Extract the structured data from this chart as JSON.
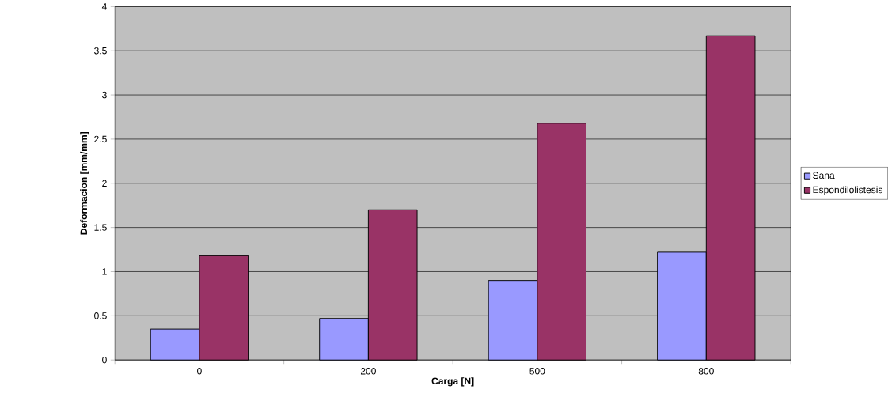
{
  "chart_data": {
    "type": "bar",
    "xlabel": "Carga [N]",
    "ylabel": "Deformacion [mm/mm]",
    "categories": [
      "0",
      "200",
      "500",
      "800"
    ],
    "series": [
      {
        "name": "Sana",
        "color": "#9999ff",
        "values": [
          0.35,
          0.47,
          0.9,
          1.22
        ]
      },
      {
        "name": "Espondilolistesis",
        "color": "#993366",
        "values": [
          1.18,
          1.7,
          2.68,
          3.67
        ]
      }
    ],
    "ylim": [
      0,
      4
    ],
    "yticks": [
      0,
      0.5,
      1,
      1.5,
      2,
      2.5,
      3,
      3.5,
      4
    ],
    "grid": "y",
    "legend": "right"
  }
}
